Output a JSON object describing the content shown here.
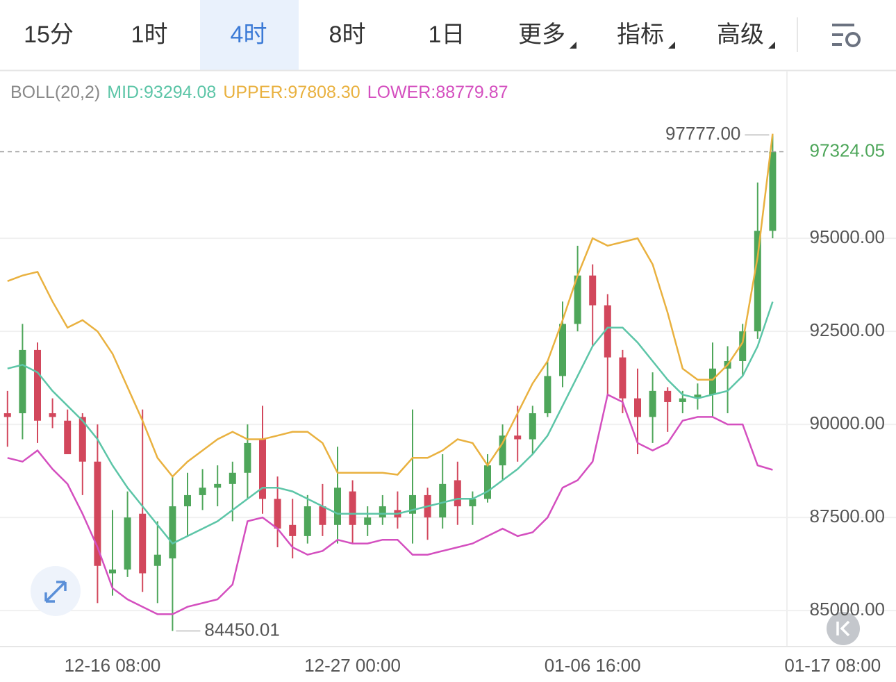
{
  "toolbar": {
    "tabs": [
      "15分",
      "1时",
      "4时",
      "8时",
      "1日",
      "更多",
      "指标",
      "高级"
    ],
    "selected": 2
  },
  "chart_data": {
    "type": "candlestick",
    "indicator": "BOLL(20,2)",
    "categories": [
      null,
      null,
      null,
      null,
      null,
      null,
      null,
      "12-16 08:00",
      null,
      null,
      null,
      null,
      null,
      null,
      null,
      null,
      null,
      null,
      null,
      null,
      null,
      null,
      null,
      "12-27 00:00",
      null,
      null,
      null,
      null,
      null,
      null,
      null,
      null,
      null,
      null,
      null,
      null,
      null,
      null,
      null,
      "01-06 16:00",
      null,
      null,
      null,
      null,
      null,
      null,
      null,
      null,
      null,
      null,
      null,
      null,
      null,
      null,
      null,
      "01-17 08:00"
    ],
    "open": [
      90300,
      90300,
      92000,
      90300,
      90100,
      90200,
      89000,
      86000,
      86100,
      87600,
      86200,
      86400,
      87800,
      88100,
      88300,
      88400,
      88700,
      89600,
      88000,
      87300,
      87000,
      87800,
      87300,
      88200,
      87300,
      87500,
      87700,
      87600,
      88100,
      87500,
      88500,
      87800,
      88000,
      88900,
      89700,
      89600,
      90300,
      91300,
      92700,
      94000,
      93200,
      91800,
      90700,
      90200,
      90900,
      90600,
      90700,
      90800,
      91500,
      91700,
      92500,
      95200,
      null,
      null,
      null,
      null
    ],
    "high": [
      90900,
      92700,
      92200,
      90700,
      90400,
      90300,
      90000,
      87700,
      88200,
      90400,
      87400,
      88600,
      88700,
      88800,
      88900,
      89000,
      90000,
      90500,
      88600,
      88000,
      88100,
      88400,
      89400,
      88500,
      87800,
      88100,
      88200,
      90400,
      88300,
      89200,
      89000,
      88200,
      89200,
      90000,
      90500,
      90500,
      91700,
      93300,
      94800,
      94300,
      93500,
      92000,
      91500,
      91400,
      91000,
      90900,
      91100,
      92200,
      92100,
      92700,
      96500,
      97777,
      null,
      null,
      null,
      null
    ],
    "low": [
      89400,
      89600,
      89500,
      89900,
      89300,
      88100,
      85200,
      85400,
      85900,
      85500,
      85200,
      84450.01,
      87000,
      87700,
      87800,
      87400,
      88000,
      87600,
      86700,
      86400,
      86800,
      87000,
      86800,
      86800,
      87000,
      87300,
      87200,
      86800,
      86900,
      87200,
      87300,
      87300,
      87900,
      88500,
      89000,
      89200,
      90200,
      91000,
      92500,
      92100,
      90800,
      90300,
      89200,
      89500,
      89800,
      90300,
      90400,
      90200,
      90300,
      91300,
      92300,
      95000,
      null,
      null,
      null,
      null
    ],
    "close": [
      90200,
      92000,
      90100,
      90200,
      89200,
      89000,
      86200,
      86100,
      87500,
      86000,
      86500,
      87800,
      88100,
      88300,
      88400,
      88700,
      89500,
      88000,
      87200,
      87000,
      87800,
      87300,
      88300,
      87300,
      87500,
      87800,
      87500,
      88100,
      87500,
      88400,
      87800,
      88000,
      88900,
      89700,
      89600,
      90300,
      91300,
      92700,
      94000,
      93200,
      91800,
      90700,
      90200,
      90900,
      90600,
      90700,
      90800,
      91500,
      91700,
      92500,
      95200,
      97324.05,
      null,
      null,
      null,
      null
    ],
    "up_color": "#4ea65a",
    "down_color": "#d2475c",
    "bands": [
      {
        "name": "MID:",
        "value_label": "93294.08",
        "color": "#5cc5a7",
        "values": [
          91500,
          91600,
          91400,
          90900,
          90500,
          90100,
          89600,
          88900,
          88300,
          87800,
          87300,
          86800,
          87000,
          87200,
          87400,
          87700,
          88000,
          88300,
          88300,
          88200,
          88000,
          87800,
          87600,
          87600,
          87600,
          87600,
          87600,
          87700,
          87800,
          87900,
          88000,
          88000,
          88200,
          88500,
          88800,
          89200,
          89700,
          90500,
          91300,
          92100,
          92600,
          92600,
          92200,
          91700,
          91200,
          90800,
          90700,
          90800,
          90900,
          91300,
          92100,
          93294.08,
          null,
          null,
          null,
          null
        ]
      },
      {
        "name": "UPPER:",
        "value_label": "97808.30",
        "color": "#e9b13f",
        "values": [
          93850,
          94000,
          94100,
          93300,
          92600,
          92800,
          92500,
          91900,
          91000,
          90100,
          89100,
          88600,
          89000,
          89300,
          89600,
          89800,
          89600,
          89600,
          89700,
          89800,
          89800,
          89500,
          88700,
          88700,
          88700,
          88700,
          88650,
          89100,
          89100,
          89300,
          89600,
          89500,
          88900,
          89500,
          90300,
          91100,
          91700,
          92800,
          94000,
          95000,
          94800,
          94900,
          95000,
          94300,
          93000,
          91500,
          91200,
          91200,
          91600,
          92200,
          94500,
          97808.3,
          null,
          null,
          null,
          null
        ]
      },
      {
        "name": "LOWER:",
        "value_label": "88779.87",
        "color": "#d44fbf",
        "values": [
          89100,
          89000,
          89300,
          88800,
          88400,
          87600,
          86700,
          85600,
          85300,
          85100,
          84900,
          84900,
          85100,
          85200,
          85300,
          85700,
          87400,
          87500,
          87200,
          86700,
          86500,
          86600,
          86900,
          86800,
          86800,
          86900,
          86900,
          86500,
          86500,
          86600,
          86700,
          86800,
          87000,
          87200,
          87000,
          87100,
          87500,
          88300,
          88500,
          89000,
          90800,
          90600,
          89500,
          89300,
          89500,
          90100,
          90200,
          90200,
          90000,
          90000,
          88900,
          88779.87,
          null,
          null,
          null,
          null
        ]
      }
    ],
    "high_mark": {
      "index": 51,
      "value": 97777,
      "label": "97777.00"
    },
    "low_mark": {
      "index": 11,
      "value": 84450.01,
      "label": "84450.01"
    },
    "last_price": {
      "value": 97324.05,
      "label": "97324.05",
      "color": "#4ea65a"
    },
    "ylim": [
      84050,
      99480
    ],
    "yticks": [
      {
        "value": 85000,
        "label": "85000.00"
      },
      {
        "value": 87500,
        "label": "87500.00"
      },
      {
        "value": 90000,
        "label": "90000.00"
      },
      {
        "value": 92500,
        "label": "92500.00"
      },
      {
        "value": 95000,
        "label": "95000.00"
      }
    ],
    "grid": true
  }
}
